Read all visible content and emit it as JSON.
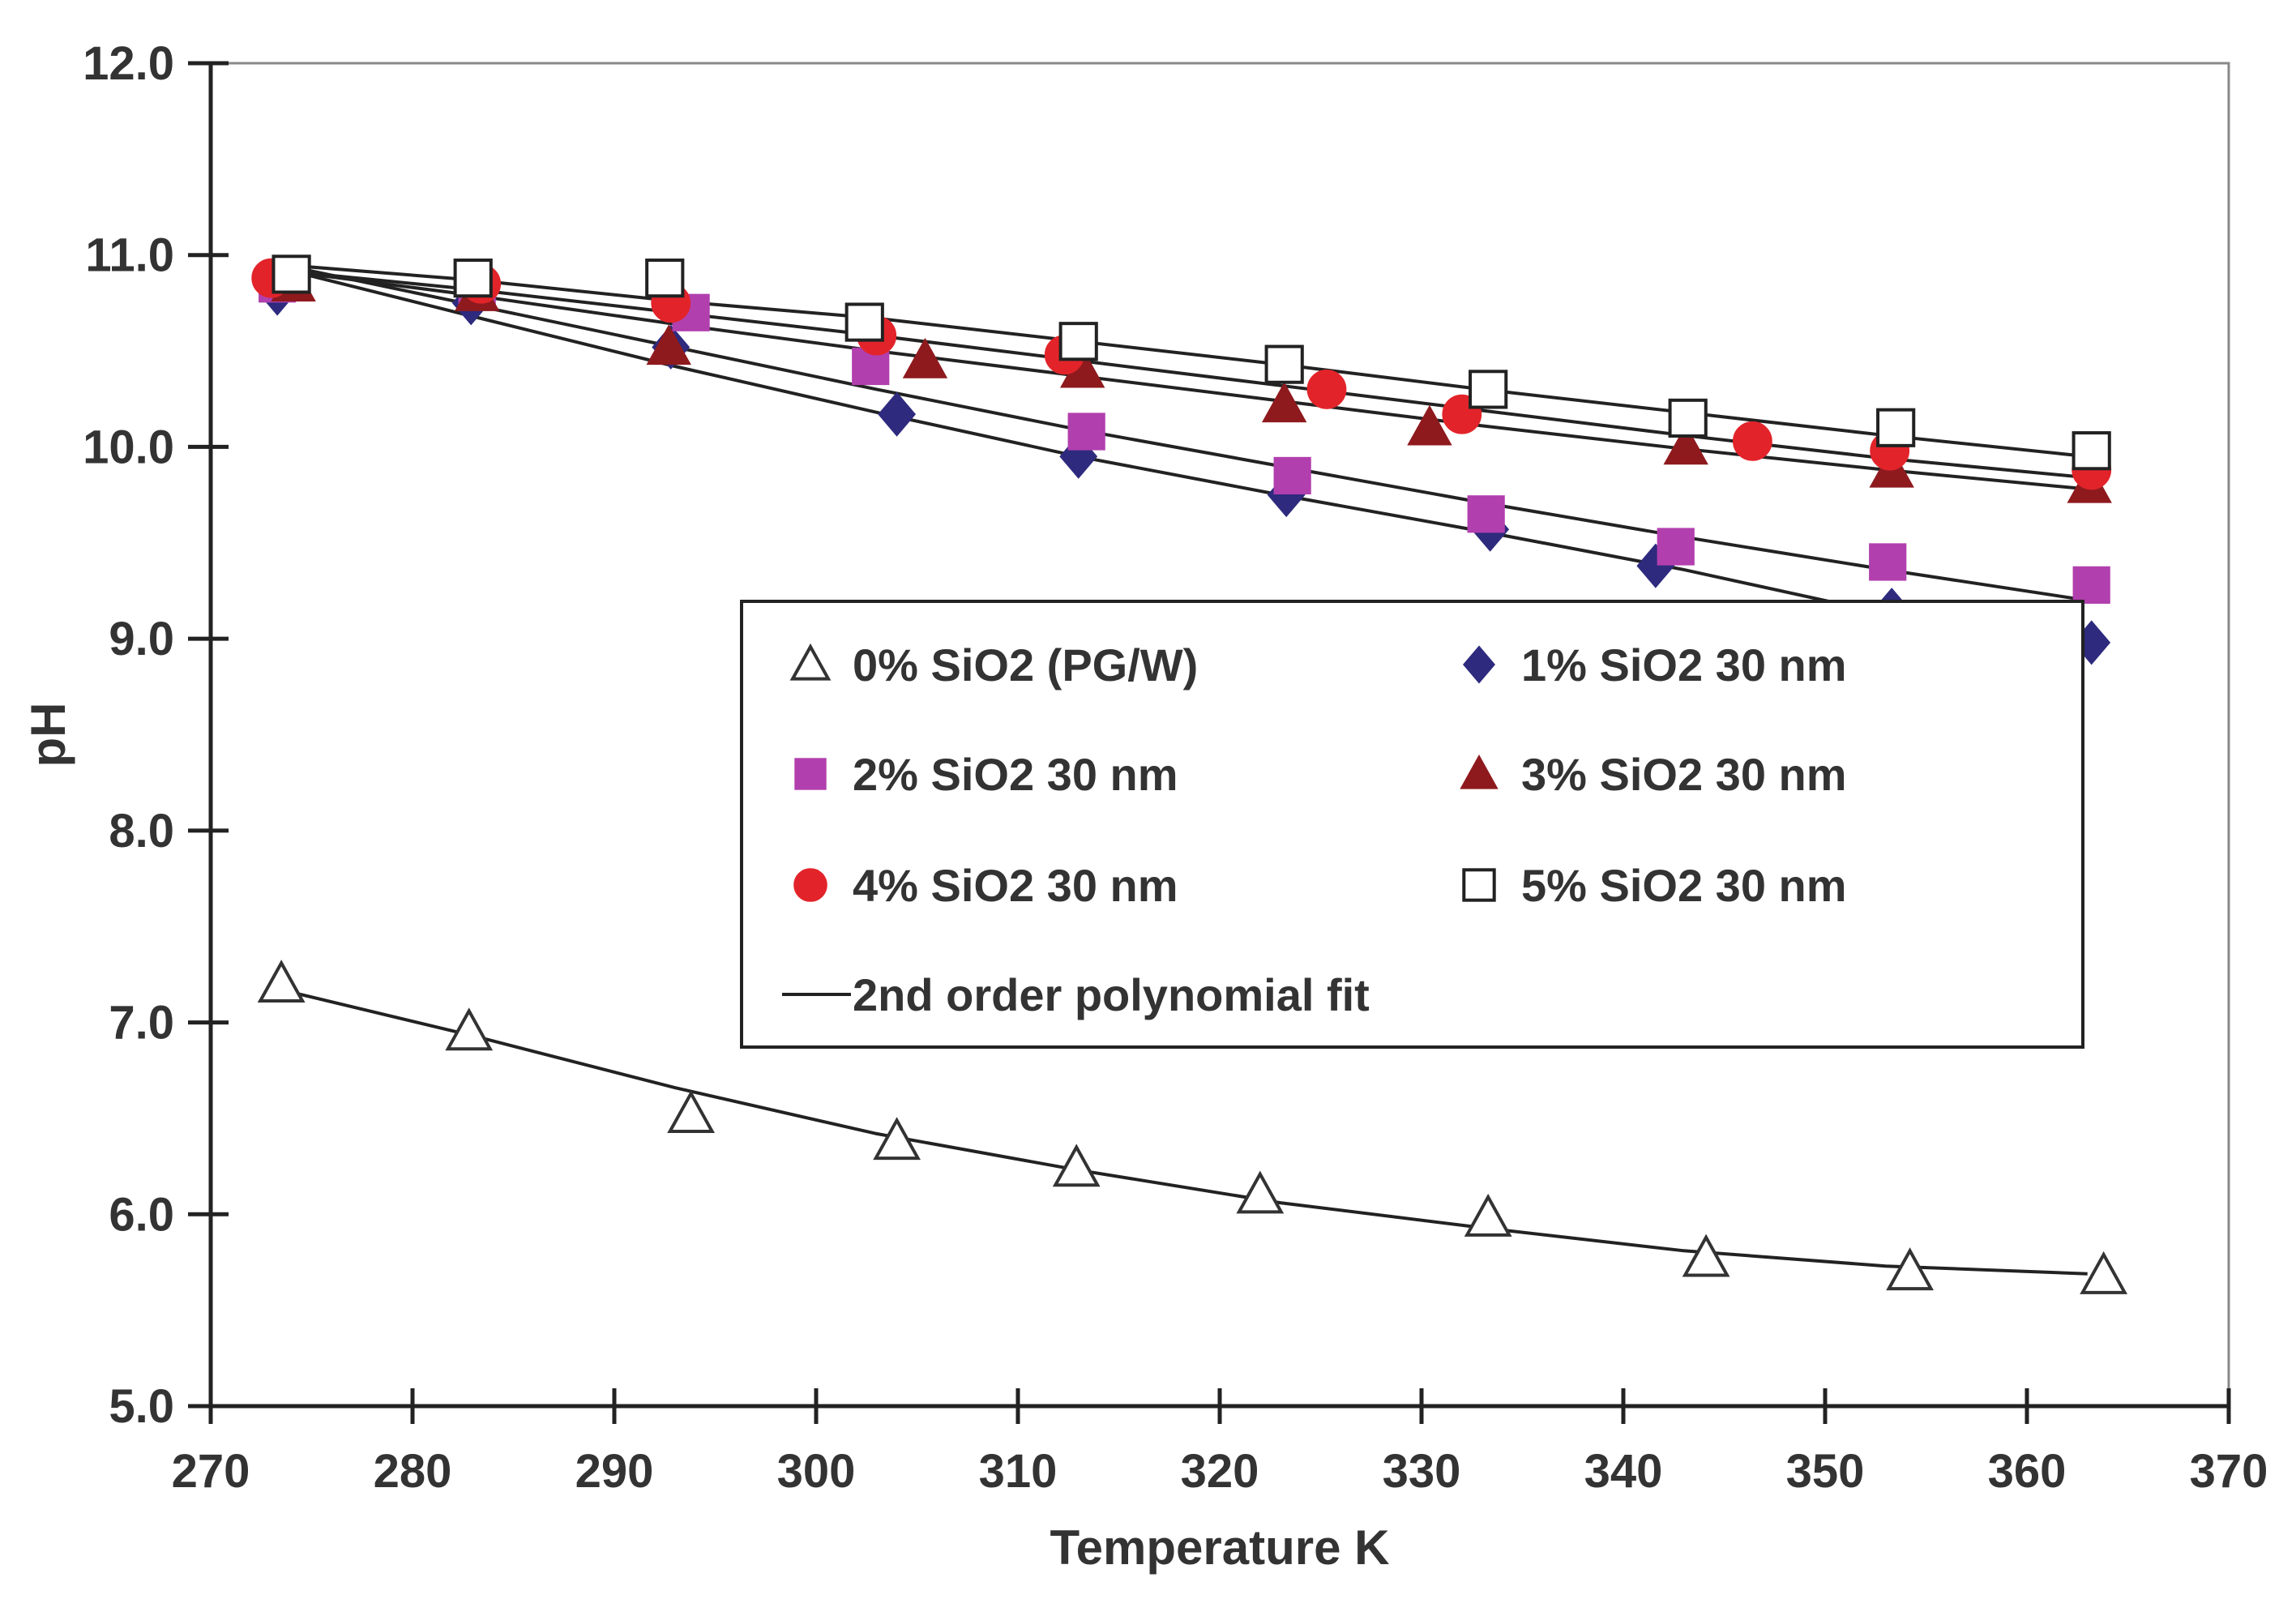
{
  "chart_data": {
    "type": "scatter",
    "title": "",
    "xlabel": "Temperature K",
    "ylabel": "pH",
    "xlim": [
      270,
      370
    ],
    "ylim": [
      5.0,
      12.0
    ],
    "x_ticks": [
      270,
      280,
      290,
      300,
      310,
      320,
      330,
      340,
      350,
      360,
      370
    ],
    "x_tick_labels": [
      "270",
      "280",
      "290",
      "300",
      "310",
      "320",
      "330",
      "340",
      "350",
      "360",
      "370"
    ],
    "y_ticks": [
      5,
      6,
      7,
      8,
      9,
      10,
      11,
      12
    ],
    "y_tick_labels": [
      "5.0",
      "6.0",
      "7.0",
      "8.0",
      "9.0",
      "10.0",
      "11.0",
      "12.0"
    ],
    "grid": false,
    "legend_position": "center-right",
    "series": [
      {
        "name": "0% SiO2 (PG/W)",
        "marker": "triangle-open",
        "color": "#333333",
        "x": [
          273.5,
          282.8,
          293.8,
          304.0,
          312.9,
          322.0,
          333.3,
          344.1,
          354.2,
          363.8
        ],
        "y": [
          7.2,
          6.95,
          6.52,
          6.38,
          6.24,
          6.1,
          5.98,
          5.77,
          5.7,
          5.68
        ],
        "fit": [
          [
            273.5,
            7.17
          ],
          [
            283,
            6.93
          ],
          [
            293,
            6.66
          ],
          [
            303,
            6.42
          ],
          [
            313,
            6.23
          ],
          [
            323,
            6.06
          ],
          [
            333,
            5.93
          ],
          [
            343,
            5.81
          ],
          [
            353,
            5.73
          ],
          [
            363,
            5.69
          ]
        ]
      },
      {
        "name": "1% SiO2 30 nm",
        "marker": "diamond",
        "color": "#2e2a7e",
        "x": [
          273.3,
          282.9,
          292.8,
          304.0,
          313.0,
          323.3,
          333.4,
          341.6,
          353.3,
          363.2
        ],
        "y": [
          10.8,
          10.75,
          10.52,
          10.17,
          9.95,
          9.75,
          9.57,
          9.38,
          9.15,
          8.98
        ],
        "fit": [
          [
            273.5,
            10.93
          ],
          [
            283,
            10.68
          ],
          [
            293,
            10.42
          ],
          [
            303,
            10.18
          ],
          [
            313,
            9.95
          ],
          [
            323,
            9.75
          ],
          [
            333,
            9.56
          ],
          [
            343,
            9.36
          ],
          [
            353,
            9.13
          ],
          [
            363,
            8.98
          ]
        ]
      },
      {
        "name": "2% SiO2 30 nm",
        "marker": "square",
        "color": "#b23fae",
        "x": [
          273.3,
          283.2,
          293.8,
          302.7,
          313.4,
          323.6,
          333.2,
          342.6,
          353.1,
          363.2
        ],
        "y": [
          10.85,
          10.82,
          10.7,
          10.42,
          10.08,
          9.85,
          9.65,
          9.48,
          9.4,
          9.28
        ],
        "fit": [
          [
            273.5,
            10.95
          ],
          [
            283,
            10.74
          ],
          [
            293,
            10.52
          ],
          [
            303,
            10.3
          ],
          [
            313,
            10.09
          ],
          [
            323,
            9.9
          ],
          [
            333,
            9.71
          ],
          [
            343,
            9.53
          ],
          [
            353,
            9.36
          ],
          [
            363,
            9.2
          ]
        ]
      },
      {
        "name": "3% SiO2 30 nm",
        "marker": "triangle",
        "color": "#8e1a1e",
        "x": [
          274.1,
          283.2,
          292.7,
          305.4,
          313.2,
          323.2,
          330.4,
          343.1,
          353.3,
          363.1
        ],
        "y": [
          10.85,
          10.8,
          10.52,
          10.45,
          10.4,
          10.22,
          10.1,
          10.0,
          9.88,
          9.8
        ],
        "fit": [
          [
            273.5,
            10.92
          ],
          [
            283,
            10.79
          ],
          [
            293,
            10.64
          ],
          [
            303,
            10.5
          ],
          [
            313,
            10.37
          ],
          [
            323,
            10.24
          ],
          [
            333,
            10.11
          ],
          [
            343,
            9.99
          ],
          [
            353,
            9.88
          ],
          [
            363,
            9.78
          ]
        ]
      },
      {
        "name": "4% SiO2 30 nm",
        "marker": "circle",
        "color": "#e2242a",
        "x": [
          273.0,
          283.4,
          292.8,
          303.0,
          312.3,
          325.3,
          332.0,
          346.4,
          353.2,
          363.2
        ],
        "y": [
          10.88,
          10.85,
          10.75,
          10.58,
          10.48,
          10.3,
          10.17,
          10.03,
          9.98,
          9.88
        ],
        "fit": [
          [
            273.5,
            10.92
          ],
          [
            283,
            10.82
          ],
          [
            293,
            10.7
          ],
          [
            303,
            10.58
          ],
          [
            313,
            10.45
          ],
          [
            323,
            10.32
          ],
          [
            333,
            10.19
          ],
          [
            343,
            10.06
          ],
          [
            353,
            9.94
          ],
          [
            363,
            9.84
          ]
        ]
      },
      {
        "name": "5% SiO2 30 nm",
        "marker": "square-open",
        "color": "#333333",
        "x": [
          274.0,
          283.0,
          292.5,
          302.4,
          313.0,
          323.2,
          333.3,
          343.2,
          353.5,
          363.2
        ],
        "y": [
          10.9,
          10.88,
          10.88,
          10.65,
          10.55,
          10.43,
          10.3,
          10.15,
          10.1,
          9.98
        ],
        "fit": [
          [
            273.5,
            10.95
          ],
          [
            283,
            10.87
          ],
          [
            293,
            10.76
          ],
          [
            303,
            10.67
          ],
          [
            313,
            10.55
          ],
          [
            323,
            10.43
          ],
          [
            333,
            10.3
          ],
          [
            343,
            10.18
          ],
          [
            353,
            10.06
          ],
          [
            363,
            9.95
          ]
        ]
      }
    ],
    "legend_fit_label": "2nd order polynomial fit"
  }
}
